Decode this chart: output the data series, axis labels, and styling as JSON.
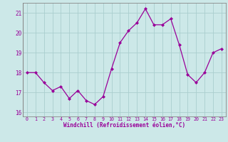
{
  "x": [
    0,
    1,
    2,
    3,
    4,
    5,
    6,
    7,
    8,
    9,
    10,
    11,
    12,
    13,
    14,
    15,
    16,
    17,
    18,
    19,
    20,
    21,
    22,
    23
  ],
  "y": [
    18.0,
    18.0,
    17.5,
    17.1,
    17.3,
    16.7,
    17.1,
    16.6,
    16.4,
    16.8,
    18.2,
    19.5,
    20.1,
    20.5,
    21.2,
    20.4,
    20.4,
    20.7,
    19.4,
    17.9,
    17.5,
    18.0,
    19.0,
    19.2
  ],
  "line_color": "#990099",
  "marker": "D",
  "marker_size": 2,
  "bg_color": "#cce8e8",
  "grid_color": "#aacece",
  "xlabel": "Windchill (Refroidissement éolien,°C)",
  "xlabel_color": "#990099",
  "tick_color": "#990099",
  "ylim": [
    15.8,
    21.5
  ],
  "xlim": [
    -0.5,
    23.5
  ],
  "yticks": [
    16,
    17,
    18,
    19,
    20,
    21
  ],
  "xticks": [
    0,
    1,
    2,
    3,
    4,
    5,
    6,
    7,
    8,
    9,
    10,
    11,
    12,
    13,
    14,
    15,
    16,
    17,
    18,
    19,
    20,
    21,
    22,
    23
  ],
  "xtick_labels": [
    "0",
    "1",
    "2",
    "3",
    "4",
    "5",
    "6",
    "7",
    "8",
    "9",
    "10",
    "11",
    "12",
    "13",
    "14",
    "15",
    "16",
    "17",
    "18",
    "19",
    "20",
    "21",
    "22",
    "23"
  ],
  "spine_color": "#888888"
}
